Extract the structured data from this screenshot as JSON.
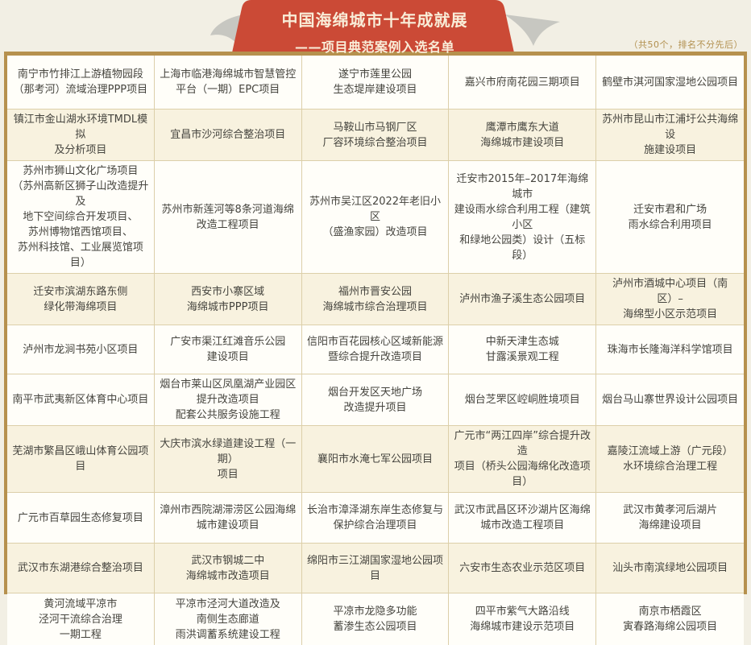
{
  "header": {
    "title": "中国海绵城市十年成就展",
    "subtitle": "——项目典范案例入选名单",
    "note": "（共50个，排名不分先后）"
  },
  "colors": {
    "page_bg": "#f2efe4",
    "ribbon_red": "#cb4a36",
    "ribbon_text": "#f9edd8",
    "tail_gray": "#c7c7c1",
    "border_gold": "#b6914e",
    "grid_line": "#dccfa9",
    "cell_cream": "#f8f2df",
    "cell_white": "#fffef9",
    "text": "#45443e",
    "note_gold": "#b2904f"
  },
  "table": {
    "shaded_rows": [
      2,
      4,
      7,
      9
    ],
    "rows": [
      {
        "cells": [
          "南宁市竹排江上游植物园段\n（那考河）流域治理PPP项目",
          "上海市临港海绵城市智慧管控\n平台（一期）EPC项目",
          "遂宁市莲里公园\n生态堤岸建设项目",
          "嘉兴市府南花园三期项目",
          "鹤壁市淇河国家湿地公园项目"
        ]
      },
      {
        "cells": [
          "镇江市金山湖水环境TMDL模拟\n及分析项目",
          "宜昌市沙河综合整治项目",
          "马鞍山市马钢厂区\n厂容环境综合整治项目",
          "鹰潭市鹰东大道\n海绵城市建设项目",
          "苏州市昆山市江浦圩公共海绵设\n施建设项目"
        ]
      },
      {
        "cells": [
          "苏州市狮山文化广场项目\n（苏州高新区狮子山改造提升及\n地下空间综合开发项目、\n苏州博物馆西馆项目、\n苏州科技馆、工业展览馆项目）",
          "苏州市新莲河等8条河道海绵\n改造工程项目",
          "苏州市吴江区2022年老旧小区\n（盛渔家园）改造项目",
          "迁安市2015年–2017年海绵城市\n建设雨水综合利用工程（建筑小区\n和绿地公园类）设计（五标段）",
          "迁安市君和广场\n雨水综合利用项目"
        ]
      },
      {
        "cells": [
          "迁安市滨湖东路东侧\n绿化带海绵项目",
          "西安市小寨区域\n海绵城市PPP项目",
          "福州市晋安公园\n海绵城市综合治理项目",
          "泸州市渔子溪生态公园项目",
          "泸州市酒城中心项目（南区）–\n海绵型小区示范项目"
        ]
      },
      {
        "cells": [
          "泸州市龙涧书苑小区项目",
          "广安市渠江红滩音乐公园\n建设项目",
          "信阳市百花园核心区域新能源\n暨综合提升改造项目",
          "中新天津生态城\n甘露溪景观工程",
          "珠海市长隆海洋科学馆项目"
        ]
      },
      {
        "cells": [
          "南平市武夷新区体育中心项目",
          "烟台市莱山区凤凰湖产业园区\n提升改造项目\n配套公共服务设施工程",
          "烟台开发区天地广场\n改造提升项目",
          "烟台芝罘区崆峒胜境项目",
          "烟台马山寨世界设计公园项目"
        ]
      },
      {
        "cells": [
          "芜湖市繁昌区峨山体育公园项目",
          "大庆市滨水绿道建设工程（一期）\n项目",
          "襄阳市水淹七军公园项目",
          "广元市“两江四岸”综合提升改造\n项目（桥头公园海绵化改造项目）",
          "嘉陵江流域上游（广元段）\n水环境综合治理工程"
        ]
      },
      {
        "cells": [
          "广元市百草园生态修复项目",
          "漳州市西院湖滞涝区公园海绵\n城市建设项目",
          "长治市漳泽湖东岸生态修复与\n保护综合治理项目",
          "武汉市武昌区环沙湖片区海绵\n城市改造工程项目",
          "武汉市黄孝河后湖片\n海绵建设项目"
        ]
      },
      {
        "cells": [
          "武汉市东湖港综合整治项目",
          "武汉市钢城二中\n海绵城市改造项目",
          "绵阳市三江湖国家湿地公园项目",
          "六安市生态农业示范区项目",
          "汕头市南滨绿地公园项目"
        ]
      },
      {
        "cells": [
          "黄河流域平凉市\n泾河干流综合治理\n一期工程",
          "平凉市泾河大道改造及\n南侧生态廊道\n雨洪调蓄系统建设工程",
          "平凉市龙隐多功能\n蓄渗生态公园项目",
          "四平市紫气大路沿线\n海绵城市建设示范项目",
          "南京市栖霞区\n寅春路海绵公园项目"
        ]
      }
    ]
  }
}
